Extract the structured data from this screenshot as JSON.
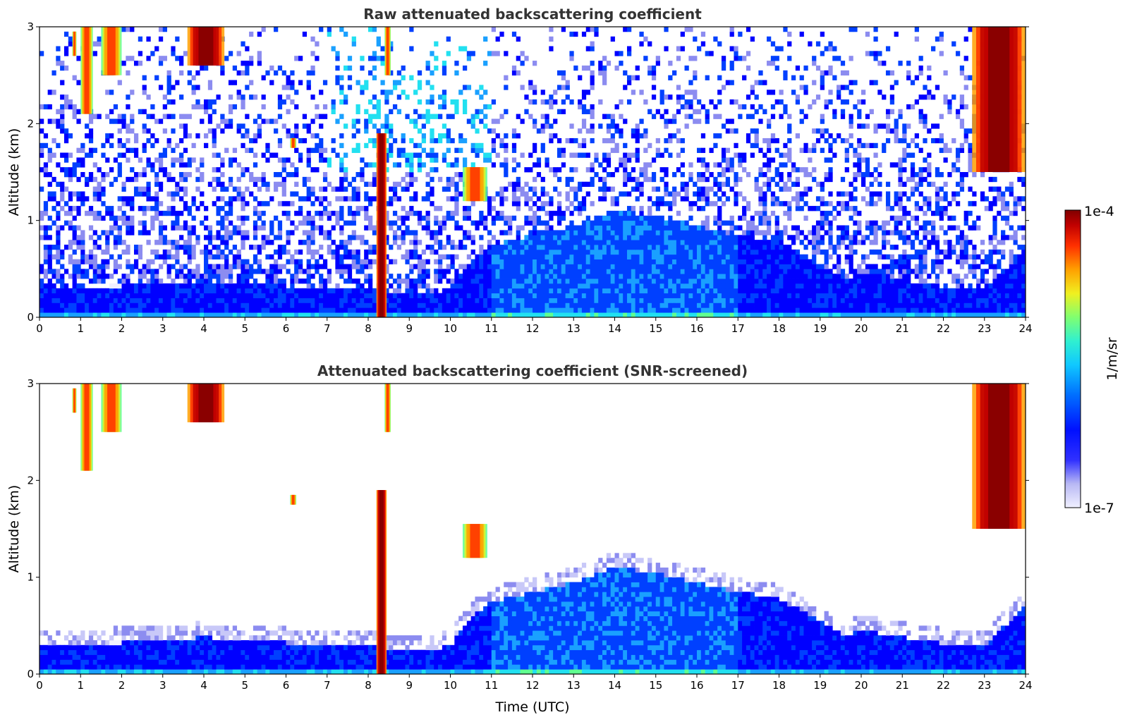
{
  "chart_data": [
    {
      "type": "heatmap",
      "title": "Raw attenuated backscattering coefficient",
      "xlabel": "",
      "ylabel": "Altitude (km)",
      "xlim": [
        0,
        24
      ],
      "ylim": [
        0,
        3
      ],
      "xticks": [
        "0",
        "1",
        "2",
        "3",
        "4",
        "5",
        "6",
        "7",
        "8",
        "9",
        "10",
        "11",
        "12",
        "13",
        "14",
        "15",
        "16",
        "17",
        "18",
        "19",
        "20",
        "21",
        "22",
        "23",
        "24"
      ],
      "yticks": [
        "0",
        "1",
        "2",
        "3"
      ],
      "screened": false,
      "boundary_layer_top_km": [
        [
          0,
          0.3
        ],
        [
          2,
          0.33
        ],
        [
          4,
          0.38
        ],
        [
          5,
          0.35
        ],
        [
          7,
          0.3
        ],
        [
          8.2,
          0.28
        ],
        [
          9,
          0.25
        ],
        [
          10,
          0.28
        ],
        [
          10.4,
          0.55
        ],
        [
          11,
          0.75
        ],
        [
          12,
          0.85
        ],
        [
          13,
          0.95
        ],
        [
          14,
          1.1
        ],
        [
          15,
          1.05
        ],
        [
          16,
          0.95
        ],
        [
          17,
          0.85
        ],
        [
          18,
          0.78
        ],
        [
          19,
          0.55
        ],
        [
          19.6,
          0.4
        ],
        [
          20,
          0.45
        ],
        [
          21,
          0.38
        ],
        [
          22,
          0.32
        ],
        [
          23,
          0.3
        ],
        [
          24,
          0.7
        ]
      ],
      "cloud_features": [
        {
          "t": [
            0.8,
            0.9
          ],
          "alt": [
            2.7,
            2.95
          ],
          "level": "high"
        },
        {
          "t": [
            1.0,
            1.3
          ],
          "alt": [
            2.1,
            3.0
          ],
          "level": "high"
        },
        {
          "t": [
            1.5,
            2.0
          ],
          "alt": [
            2.5,
            3.0
          ],
          "level": "high"
        },
        {
          "t": [
            3.6,
            4.5
          ],
          "alt": [
            2.6,
            3.0
          ],
          "level": "very-high"
        },
        {
          "t": [
            6.1,
            6.25
          ],
          "alt": [
            1.75,
            1.85
          ],
          "level": "high"
        },
        {
          "t": [
            8.2,
            8.45
          ],
          "alt": [
            0.0,
            1.9
          ],
          "level": "very-high"
        },
        {
          "t": [
            8.4,
            8.55
          ],
          "alt": [
            2.5,
            3.0
          ],
          "level": "high"
        },
        {
          "t": [
            10.3,
            10.9
          ],
          "alt": [
            1.2,
            1.55
          ],
          "level": "high"
        },
        {
          "t": [
            22.7,
            24.0
          ],
          "alt": [
            1.5,
            3.0
          ],
          "level": "very-high"
        }
      ]
    },
    {
      "type": "heatmap",
      "title": "Attenuated backscattering coefficient (SNR-screened)",
      "xlabel": "Time (UTC)",
      "ylabel": "Altitude (km)",
      "xlim": [
        0,
        24
      ],
      "ylim": [
        0,
        3
      ],
      "xticks": [
        "0",
        "1",
        "2",
        "3",
        "4",
        "5",
        "6",
        "7",
        "8",
        "9",
        "10",
        "11",
        "12",
        "13",
        "14",
        "15",
        "16",
        "17",
        "18",
        "19",
        "20",
        "21",
        "22",
        "23",
        "24"
      ],
      "yticks": [
        "0",
        "1",
        "2",
        "3"
      ],
      "screened": true
    }
  ],
  "colorbar": {
    "label": "1/m/sr",
    "max_label": "1e-4",
    "min_label": "1e-7",
    "scale": "log",
    "colormap": [
      "#f0f0ff",
      "#c8c8f8",
      "#8c8cf0",
      "#0000ff",
      "#0040ff",
      "#1aa0ff",
      "#22e0f0",
      "#60ff90",
      "#e0f020",
      "#ffa000",
      "#ff3000",
      "#c00000",
      "#800000"
    ]
  }
}
